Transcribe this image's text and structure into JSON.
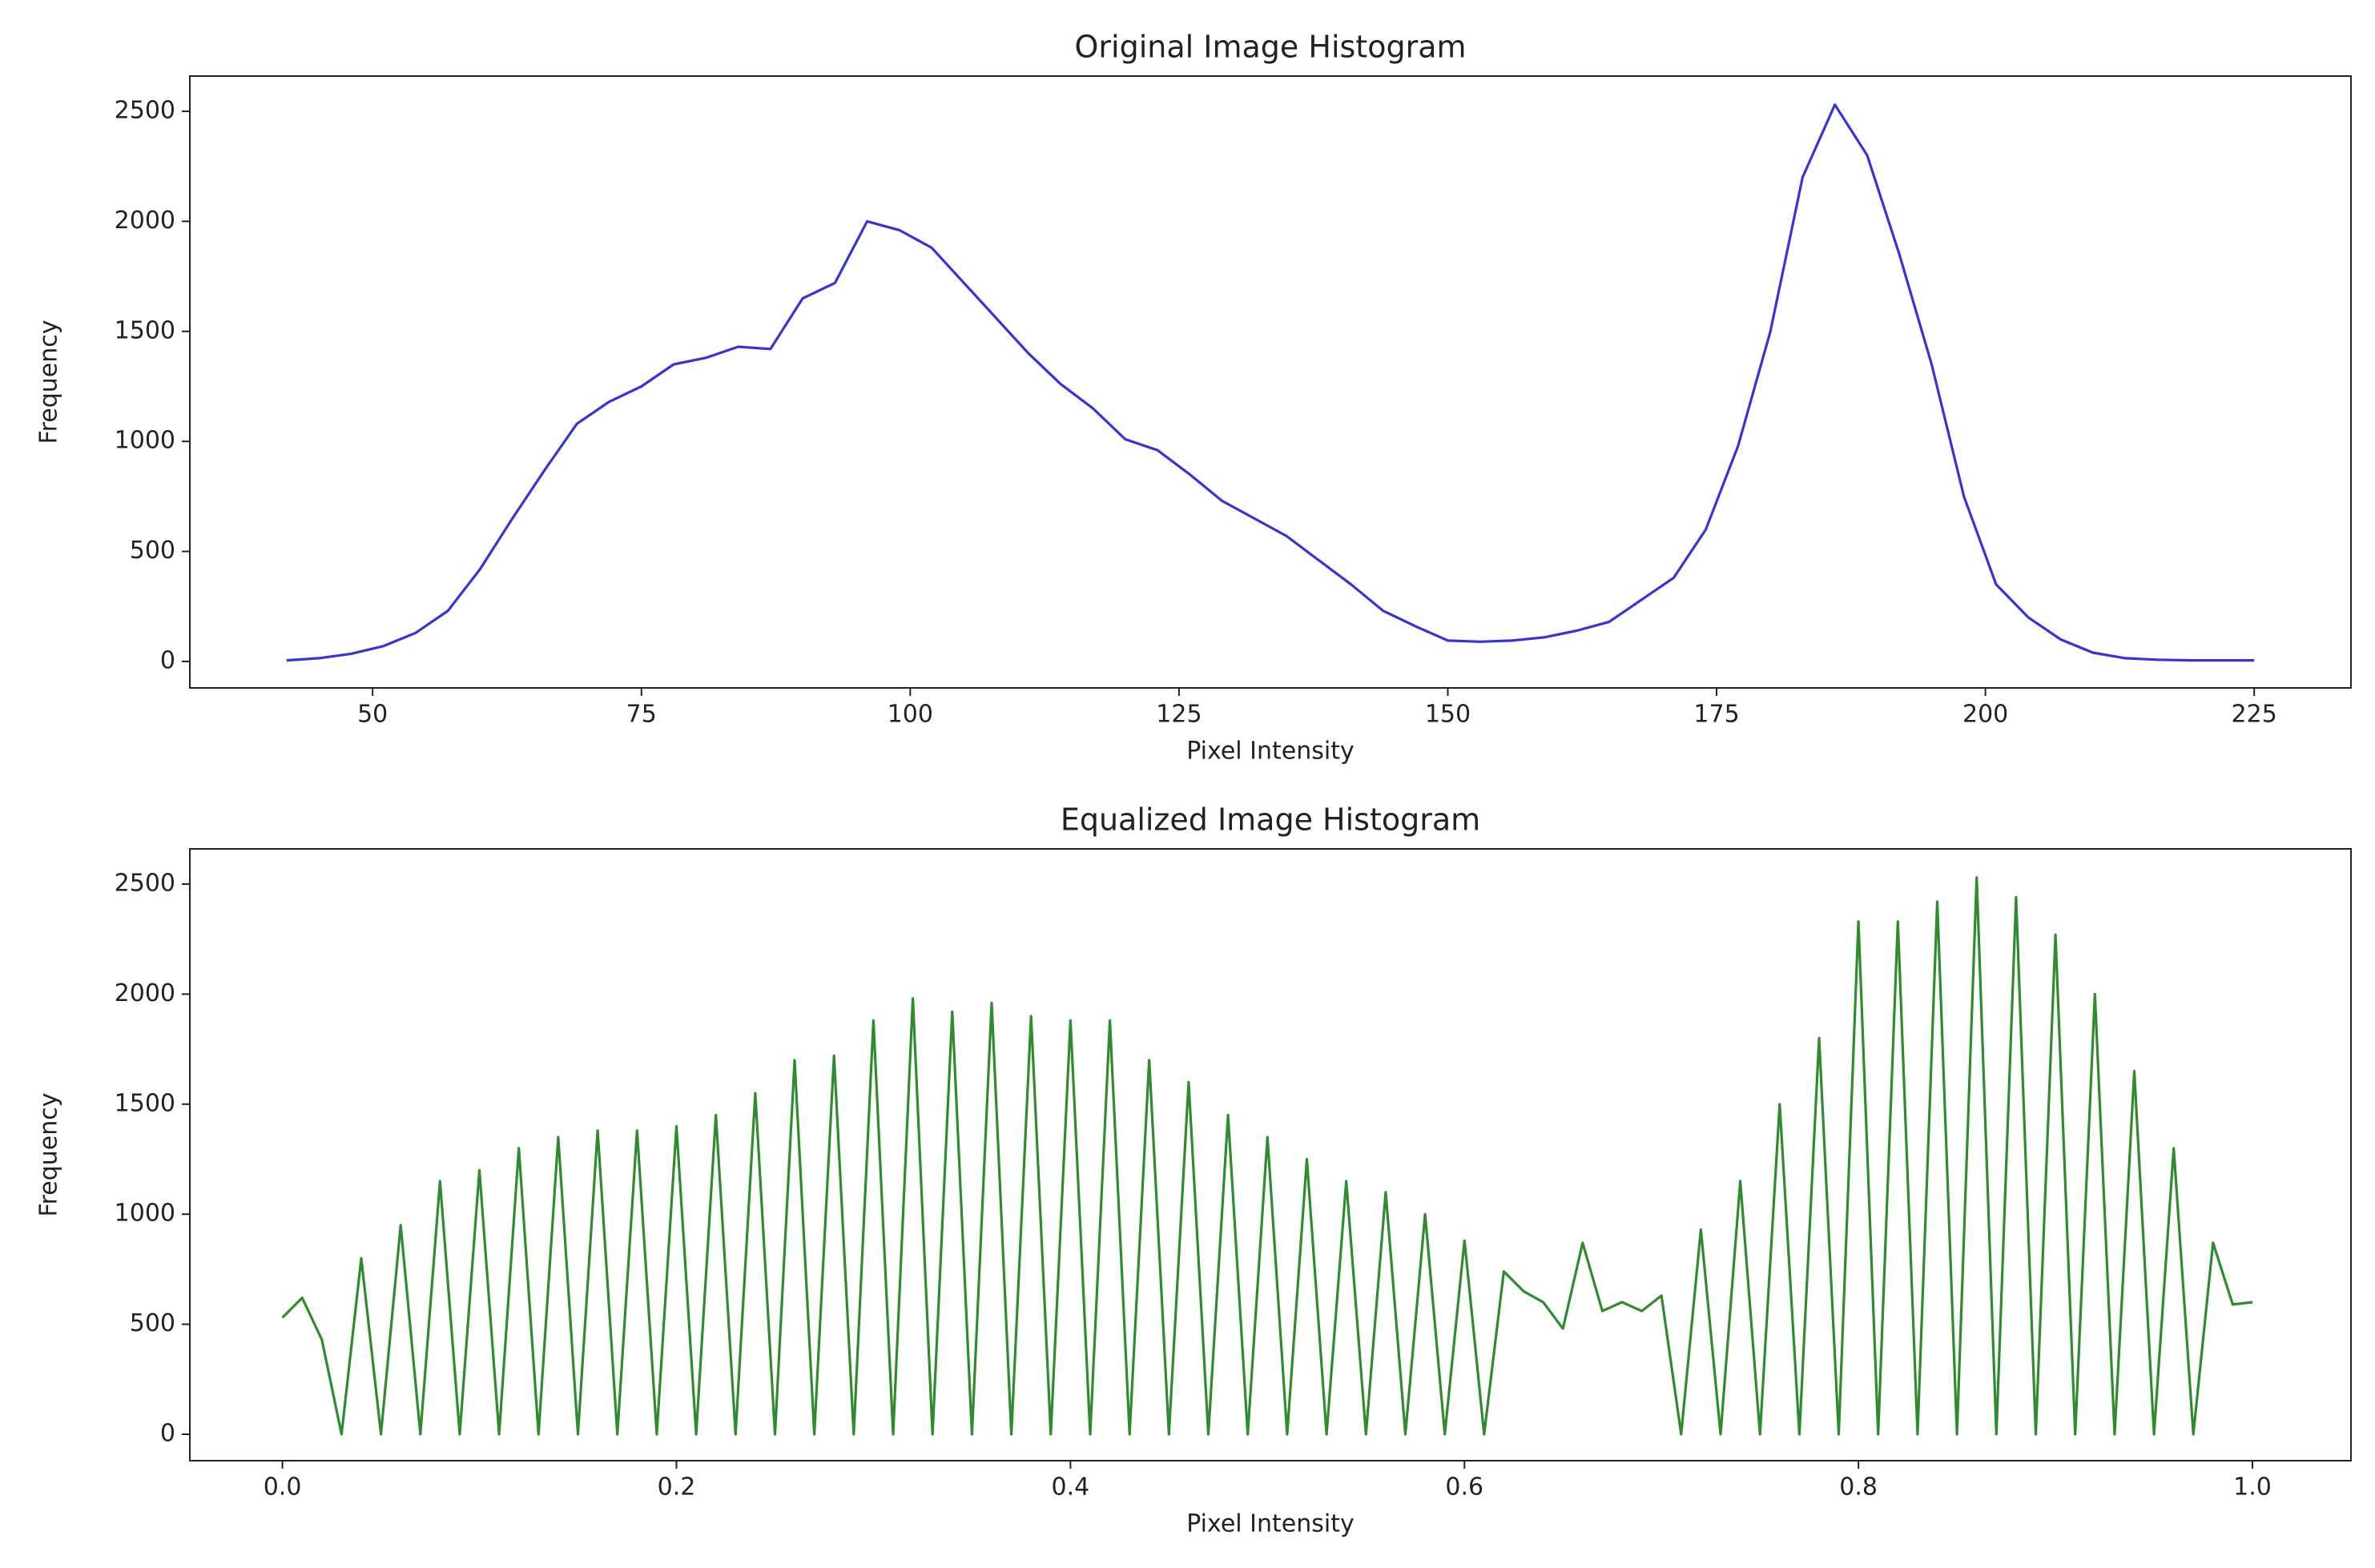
{
  "chart_data": [
    {
      "type": "line",
      "title": "Original Image Histogram",
      "x_label": "Pixel Intensity",
      "y_label": "Frequency",
      "x": [
        42,
        45,
        48,
        51,
        54,
        57,
        60,
        63,
        66,
        69,
        72,
        75,
        78,
        81,
        84,
        87,
        90,
        93,
        96,
        99,
        102,
        105,
        108,
        111,
        114,
        117,
        120,
        123,
        126,
        129,
        132,
        135,
        138,
        141,
        144,
        147,
        150,
        153,
        156,
        159,
        162,
        165,
        168,
        171,
        174,
        177,
        180,
        183,
        186,
        189,
        192,
        195,
        198,
        201,
        204,
        207,
        210,
        213,
        216,
        219,
        222,
        225
      ],
      "series": [
        {
          "name": "Original",
          "color": "#3434d8",
          "values": [
            5,
            15,
            35,
            70,
            130,
            230,
            420,
            650,
            870,
            1080,
            1180,
            1250,
            1350,
            1380,
            1430,
            1420,
            1650,
            1720,
            2000,
            1960,
            1880,
            1720,
            1560,
            1400,
            1260,
            1150,
            1010,
            960,
            850,
            730,
            650,
            570,
            460,
            350,
            230,
            160,
            95,
            90,
            95,
            110,
            140,
            180,
            280,
            380,
            600,
            980,
            1500,
            2200,
            2530,
            2300,
            1850,
            1350,
            750,
            350,
            200,
            100,
            40,
            15,
            8,
            5,
            5,
            5
          ]
        }
      ],
      "xlim": [
        33,
        234
      ],
      "ylim": [
        -120,
        2660
      ],
      "xticks": [
        50,
        75,
        100,
        125,
        150,
        175,
        200,
        225
      ],
      "yticks": [
        0,
        500,
        1000,
        1500,
        2000,
        2500
      ]
    },
    {
      "type": "line",
      "title": "Equalized Image Histogram",
      "x_label": "Pixel Intensity",
      "y_label": "Frequency",
      "x": [
        0,
        0.01,
        0.02,
        0.03,
        0.04,
        0.05,
        0.06,
        0.07,
        0.08,
        0.09,
        0.1,
        0.11,
        0.12,
        0.13,
        0.14,
        0.15,
        0.16,
        0.17,
        0.18,
        0.19,
        0.2,
        0.21,
        0.22,
        0.23,
        0.24,
        0.25,
        0.26,
        0.27,
        0.28,
        0.29,
        0.3,
        0.31,
        0.32,
        0.33,
        0.34,
        0.35,
        0.36,
        0.37,
        0.38,
        0.39,
        0.4,
        0.41,
        0.42,
        0.43,
        0.44,
        0.45,
        0.46,
        0.47,
        0.48,
        0.49,
        0.5,
        0.51,
        0.52,
        0.53,
        0.54,
        0.55,
        0.56,
        0.57,
        0.58,
        0.59,
        0.6,
        0.61,
        0.62,
        0.63,
        0.64,
        0.65,
        0.66,
        0.67,
        0.68,
        0.69,
        0.7,
        0.71,
        0.72,
        0.73,
        0.74,
        0.75,
        0.76,
        0.77,
        0.78,
        0.79,
        0.8,
        0.81,
        0.82,
        0.83,
        0.84,
        0.85,
        0.86,
        0.87,
        0.88,
        0.89,
        0.9,
        0.91,
        0.92,
        0.93,
        0.94,
        0.95,
        0.96,
        0.97,
        0.98,
        0.99,
        1
      ],
      "series": [
        {
          "name": "Equalized",
          "color": "#2e8b2e",
          "values": [
            530,
            620,
            430,
            0,
            800,
            0,
            950,
            0,
            1150,
            0,
            1200,
            0,
            1300,
            0,
            1350,
            0,
            1380,
            0,
            1380,
            0,
            1400,
            0,
            1450,
            0,
            1550,
            0,
            1700,
            0,
            1720,
            0,
            1880,
            0,
            1980,
            0,
            1920,
            0,
            1960,
            0,
            1900,
            0,
            1880,
            0,
            1880,
            0,
            1700,
            0,
            1600,
            0,
            1450,
            0,
            1350,
            0,
            1250,
            0,
            1150,
            0,
            1100,
            0,
            1000,
            0,
            880,
            0,
            740,
            650,
            600,
            480,
            870,
            560,
            600,
            560,
            630,
            0,
            930,
            0,
            1150,
            0,
            1500,
            0,
            1800,
            0,
            2330,
            0,
            2330,
            0,
            2420,
            0,
            2530,
            0,
            2440,
            0,
            2270,
            0,
            2000,
            0,
            1650,
            0,
            1300,
            0,
            870,
            590,
            600
          ]
        }
      ],
      "xlim": [
        -0.047,
        1.05
      ],
      "ylim": [
        -120,
        2660
      ],
      "xticks": [
        {
          "value": 0,
          "label": "0.0"
        },
        0.2,
        0.4,
        0.6,
        0.8,
        {
          "value": 1,
          "label": "1.0"
        }
      ],
      "yticks": [
        0,
        500,
        1000,
        1500,
        2000,
        2500
      ]
    }
  ]
}
